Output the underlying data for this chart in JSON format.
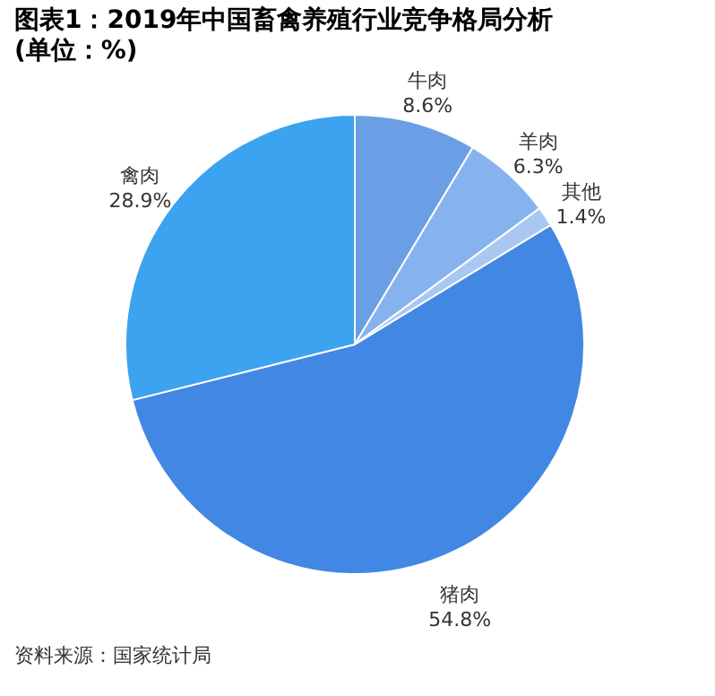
{
  "chart_data": {
    "type": "pie",
    "title": "图表1：2019年中国畜禽养殖行业竞争格局分析",
    "subtitle": "(单位：%)",
    "categories": [
      "牛肉",
      "羊肉",
      "其他",
      "猪肉",
      "禽肉"
    ],
    "values": [
      8.6,
      6.3,
      1.4,
      54.8,
      28.9
    ],
    "value_labels": [
      "8.6%",
      "6.3%",
      "1.4%",
      "54.8%",
      "28.9%"
    ],
    "colors": [
      "#6a9fe6",
      "#86b2ee",
      "#a8c8f2",
      "#4287e3",
      "#3ba3ef"
    ],
    "legend": false,
    "annotations": [
      "资料来源：国家统计局"
    ]
  }
}
